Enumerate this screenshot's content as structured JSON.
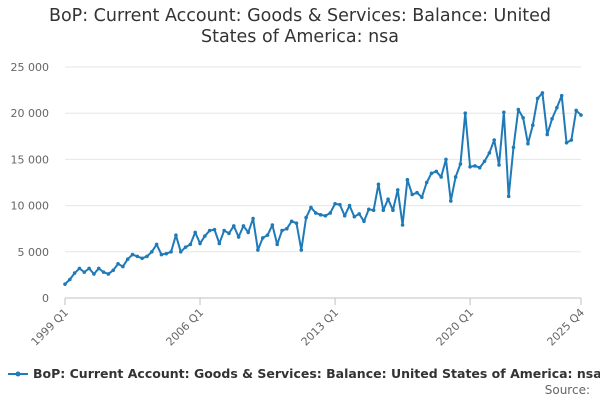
{
  "chart_data": {
    "type": "line",
    "title_line1": "BoP: Current Account: Goods & Services: Balance: United",
    "title_line2": "States of America: nsa",
    "xlabel": "",
    "ylabel": "",
    "ylim": [
      0,
      25000
    ],
    "yticks": [
      0,
      5000,
      10000,
      15000,
      20000,
      25000
    ],
    "ytick_labels": [
      "0",
      "5 000",
      "10 000",
      "15 000",
      "20 000",
      "25 000"
    ],
    "xtick_labels": [
      "1999 Q1",
      "2006 Q1",
      "2013 Q1",
      "2020 Q1",
      "2025 Q4"
    ],
    "xtick_positions": [
      0,
      28,
      56,
      84,
      107
    ],
    "grid": true,
    "legend_position": "bottom",
    "series": [
      {
        "name": "BoP: Current Account: Goods & Services: Balance: United States of America: nsa",
        "color": "#1f7ab8",
        "values": [
          1500,
          2000,
          2700,
          3200,
          2800,
          3200,
          2600,
          3200,
          2800,
          2600,
          3000,
          3700,
          3400,
          4200,
          4700,
          4500,
          4300,
          4500,
          5000,
          5800,
          4700,
          4800,
          5000,
          6800,
          5000,
          5500,
          5800,
          7100,
          5900,
          6700,
          7300,
          7400,
          5900,
          7300,
          7000,
          7800,
          6600,
          7800,
          7100,
          8600,
          5200,
          6500,
          6800,
          7900,
          5800,
          7300,
          7500,
          8300,
          8100,
          5200,
          8700,
          9800,
          9200,
          9000,
          8900,
          9200,
          10200,
          10100,
          8900,
          10000,
          8800,
          9100,
          8300,
          9600,
          9500,
          12300,
          9500,
          10700,
          9500,
          11700,
          7900,
          12800,
          11200,
          11400,
          10900,
          12500,
          13500,
          13700,
          13100,
          15000,
          10500,
          13100,
          14500,
          20000,
          14200,
          14300,
          14100,
          14800,
          15700,
          17100,
          14400,
          20100,
          11000,
          16300,
          20400,
          19500,
          16700,
          18700,
          21600,
          22200,
          17700,
          19400,
          20600,
          21900,
          16800,
          17100,
          20300,
          19800
        ]
      }
    ],
    "source_label": "Source:"
  }
}
